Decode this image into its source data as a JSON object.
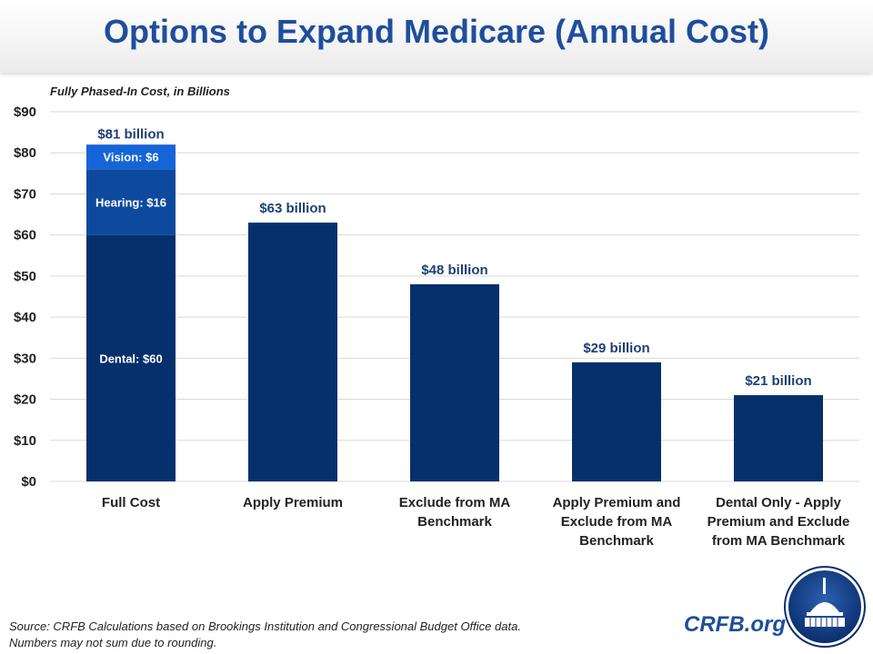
{
  "header": {
    "title": "Options to Expand Medicare (Annual Cost)"
  },
  "chart_data": {
    "type": "bar",
    "subtitle": "Fully Phased-In Cost, in Billions",
    "ylim": [
      0,
      90
    ],
    "yticks": [
      "$0",
      "$10",
      "$20",
      "$30",
      "$40",
      "$50",
      "$60",
      "$70",
      "$80",
      "$90"
    ],
    "ytick_values": [
      0,
      10,
      20,
      30,
      40,
      50,
      60,
      70,
      80,
      90
    ],
    "grid": true,
    "categories": [
      [
        "Full Cost"
      ],
      [
        "Apply Premium"
      ],
      [
        "Exclude from MA",
        "Benchmark"
      ],
      [
        "Apply Premium and",
        "Exclude from MA",
        "Benchmark"
      ],
      [
        "Dental Only - Apply",
        "Premium and Exclude",
        "from MA Benchmark"
      ]
    ],
    "values": [
      81,
      63,
      48,
      29,
      21
    ],
    "data_labels": [
      "$81 billion",
      "$63 billion",
      "$48 billion",
      "$29 billion",
      "$21 billion"
    ],
    "stack_first_bar": [
      {
        "name": "Dental",
        "value": 60,
        "label": "Dental: $60",
        "color": "#06306b"
      },
      {
        "name": "Hearing",
        "value": 16,
        "label": "Hearing: $16",
        "color": "#0d4a9e"
      },
      {
        "name": "Vision",
        "value": 6,
        "label": "Vision: $6",
        "color": "#1565d8"
      }
    ],
    "bar_color": "#06306b"
  },
  "footer": {
    "source": "Source: CRFB Calculations based on Brookings Institution and Congressional Budget Office data.",
    "note": "Numbers may not sum due to rounding.",
    "brand": "CRFB.org"
  }
}
